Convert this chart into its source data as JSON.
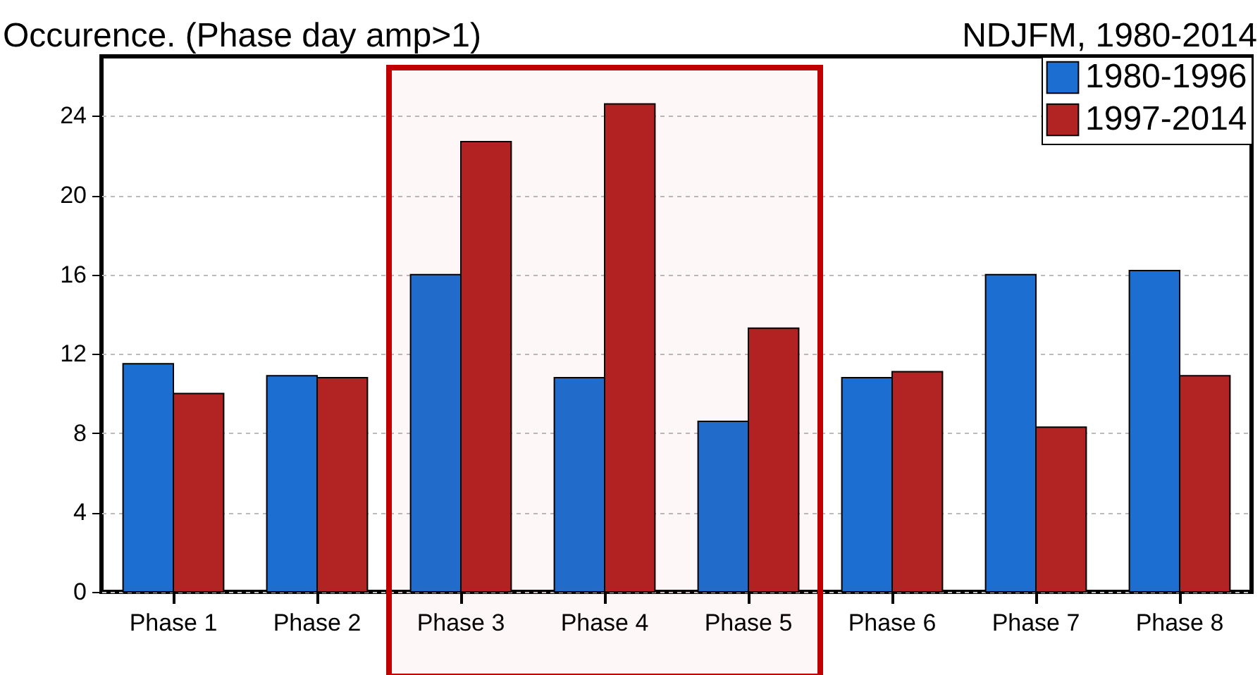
{
  "chart_data": {
    "type": "bar",
    "title": "Occurence. (Phase day amp>1)",
    "annotations": [
      "NDJFM, 1980-2014"
    ],
    "categories": [
      "Phase 1",
      "Phase 2",
      "Phase 3",
      "Phase 4",
      "Phase 5",
      "Phase 6",
      "Phase 7",
      "Phase 8"
    ],
    "series": [
      {
        "name": "1980-1996",
        "color": "#1c6fd1",
        "values": [
          11.5,
          10.9,
          16.0,
          10.8,
          8.6,
          10.8,
          16.0,
          16.2
        ]
      },
      {
        "name": "1997-2014",
        "color": "#b22424",
        "values": [
          10.0,
          10.8,
          22.7,
          24.6,
          13.3,
          11.1,
          8.3,
          10.9
        ]
      }
    ],
    "ylim": [
      0,
      27
    ],
    "yticks": [
      0,
      4,
      8,
      12,
      16,
      20,
      24
    ],
    "grid": "y",
    "legend": "top right",
    "bands": [
      {
        "axis": "x",
        "from": "Phase 3",
        "to": "Phase 5",
        "color": "#c00000"
      }
    ]
  }
}
